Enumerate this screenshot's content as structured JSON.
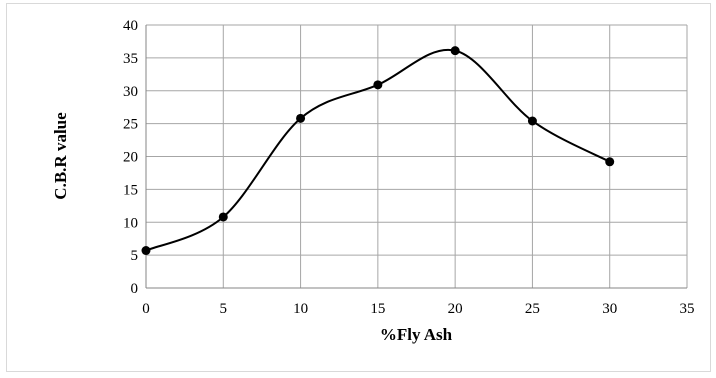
{
  "chart_data": {
    "type": "line",
    "title": "",
    "xlabel": "%Fly Ash",
    "ylabel": "C.B.R value",
    "xlim": [
      0,
      35
    ],
    "ylim": [
      0,
      40
    ],
    "xticks": [
      "0",
      "5",
      "10",
      "15",
      "20",
      "25",
      "30",
      "35"
    ],
    "yticks": [
      "0",
      "5",
      "10",
      "15",
      "20",
      "25",
      "30",
      "35",
      "40"
    ],
    "grid": true,
    "legend": "none",
    "smoothed": true,
    "series": [
      {
        "x": [
          0,
          5,
          10,
          15,
          20,
          25,
          30
        ],
        "y": [
          5.7,
          10.8,
          25.8,
          30.9,
          36.1,
          25.4,
          19.2
        ],
        "color": "#000000"
      }
    ]
  }
}
